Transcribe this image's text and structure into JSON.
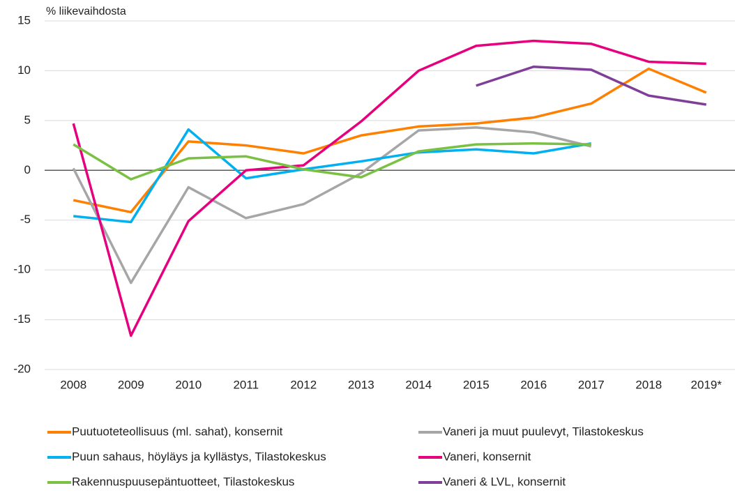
{
  "chart_data": {
    "type": "line",
    "y_axis_label": "% liikevaihdosta",
    "categories": [
      "2008",
      "2009",
      "2010",
      "2011",
      "2012",
      "2013",
      "2014",
      "2015",
      "2016",
      "2017",
      "2018",
      "2019*"
    ],
    "series": [
      {
        "name": "Puutuoteteollisuus (ml. sahat), konsernit",
        "color": "#ff8000",
        "values": [
          -3.0,
          -4.2,
          2.9,
          2.5,
          1.7,
          3.5,
          4.4,
          4.7,
          5.3,
          6.7,
          10.2,
          7.8
        ]
      },
      {
        "name": "Vaneri ja muut puulevyt, Tilastokeskus",
        "color": "#a6a6a6",
        "values": [
          0.2,
          -11.3,
          -1.7,
          -4.8,
          -3.4,
          -0.3,
          4.0,
          4.3,
          3.8,
          2.4,
          null,
          null
        ]
      },
      {
        "name": "Puun sahaus, höyläys ja kyllästys, Tilastokeskus",
        "color": "#00b0f0",
        "values": [
          -4.6,
          -5.2,
          4.1,
          -0.8,
          0.1,
          0.9,
          1.8,
          2.1,
          1.7,
          2.7,
          null,
          null
        ]
      },
      {
        "name": "Vaneri, konsernit",
        "color": "#e6007e",
        "values": [
          4.7,
          -16.6,
          -5.1,
          0.0,
          0.5,
          4.9,
          10.0,
          12.5,
          13.0,
          12.7,
          10.9,
          10.7
        ]
      },
      {
        "name": "Rakennuspuusepäntuotteet, Tilastokeskus",
        "color": "#7ac143",
        "values": [
          2.6,
          -0.9,
          1.2,
          1.4,
          0.1,
          -0.7,
          1.9,
          2.6,
          2.7,
          2.6,
          null,
          null
        ]
      },
      {
        "name": "Vaneri & LVL, konsernit",
        "color": "#7f3f98",
        "values": [
          null,
          null,
          null,
          null,
          null,
          null,
          null,
          8.5,
          10.4,
          10.1,
          7.5,
          6.6
        ]
      }
    ],
    "ylim": [
      -20,
      15
    ],
    "yticks": [
      -20,
      -15,
      -10,
      -5,
      0,
      5,
      10,
      15
    ],
    "grid": true
  }
}
